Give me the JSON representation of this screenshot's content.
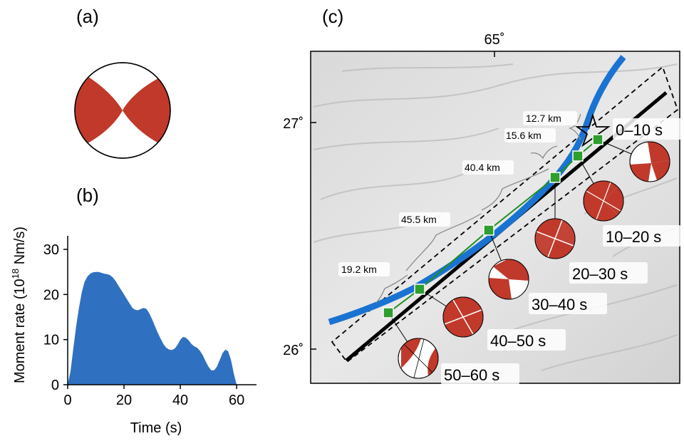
{
  "panel_labels": {
    "a": "(a)",
    "b": "(b)",
    "c": "(c)"
  },
  "colors": {
    "beachball_compression": "#c0392b",
    "moment_rate_fill": "#3070c0",
    "rupture_trace": "#1a73d1",
    "fault_line": "#000000",
    "subevent_marker": "#2e9e2e",
    "segment_line": "#1e8f1e"
  },
  "chart_data": {
    "type": "area",
    "title": "",
    "xlabel": "Time (s)",
    "ylabel": "Moment rate (10",
    "ylabel_superscript": "18",
    "ylabel_unit": " Nm/s)",
    "xlim": [
      0,
      62
    ],
    "ylim": [
      0,
      33
    ],
    "xticks": [
      "0",
      "20",
      "40",
      "60"
    ],
    "yticks": [
      "0",
      "10",
      "20",
      "30"
    ],
    "grid": false,
    "x": [
      0,
      1,
      2,
      3,
      4,
      5,
      6,
      7,
      8,
      9,
      10,
      11,
      12,
      13,
      14,
      15,
      16,
      17,
      18,
      19,
      20,
      21,
      22,
      23,
      24,
      25,
      26,
      27,
      28,
      29,
      30,
      31,
      32,
      33,
      34,
      35,
      36,
      37,
      38,
      39,
      40,
      41,
      42,
      43,
      44,
      45,
      46,
      47,
      48,
      49,
      50,
      51,
      52,
      53,
      54,
      55,
      56,
      57,
      58,
      59,
      60
    ],
    "values": [
      0,
      3,
      8,
      13,
      17,
      20.5,
      22.8,
      24,
      24.6,
      24.9,
      25,
      25,
      24.8,
      24.6,
      24.5,
      24.3,
      23.8,
      23,
      22,
      21,
      20,
      19,
      18,
      17,
      16.6,
      16.5,
      16.8,
      17,
      16.8,
      15.8,
      14.5,
      13,
      11.5,
      10.2,
      9,
      8.2,
      7.8,
      7.7,
      8,
      8.8,
      10,
      10.6,
      10.4,
      9.8,
      9,
      8.5,
      8.2,
      7.5,
      6.5,
      5.2,
      4,
      3.2,
      3.2,
      4,
      5.5,
      7,
      7.8,
      7.4,
      5.5,
      2.5,
      0
    ]
  },
  "map": {
    "lon_tick": "65˚",
    "lat_ticks": [
      "27˚",
      "26˚"
    ],
    "epicenter_icon": "star-icon",
    "subevents": [
      {
        "label": "0–10 s",
        "size": "large"
      },
      {
        "label": "10–20 s",
        "size": "large"
      },
      {
        "label": "20–30 s",
        "size": "large"
      },
      {
        "label": "30–40 s",
        "size": "large"
      },
      {
        "label": "40–50 s",
        "size": "large"
      },
      {
        "label": "50–60 s",
        "size": "large"
      }
    ],
    "segment_lengths": [
      "12.7 km",
      "15.6 km",
      "40.4 km",
      "45.5 km",
      "19.2 km"
    ]
  }
}
